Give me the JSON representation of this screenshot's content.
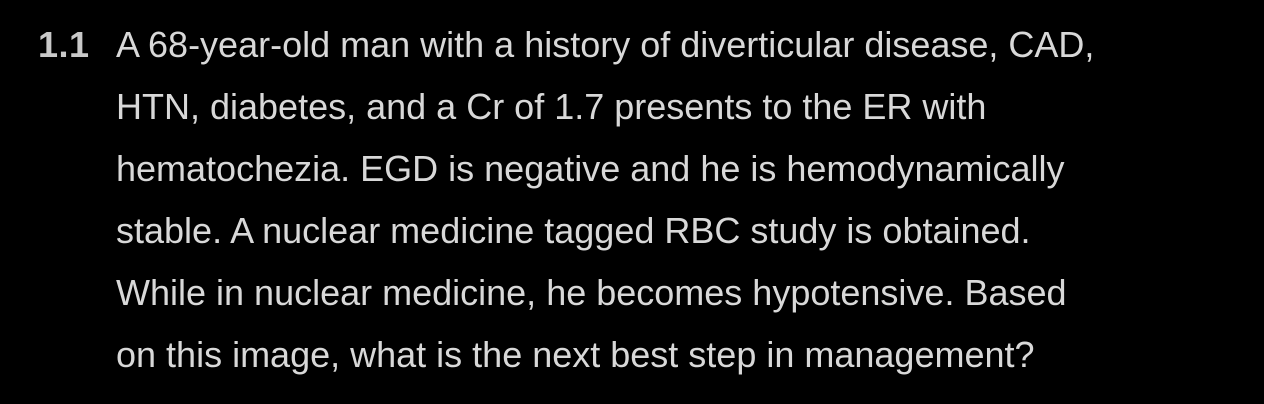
{
  "question": {
    "number": "1.1",
    "lines": [
      "A 68-year-old man with a history of diverticular disease, CAD,",
      "HTN, diabetes, and a Cr of 1.7 presents to the ER with",
      "hematochezia. EGD is negative and he is hemodynamically",
      "stable. A nuclear medicine tagged RBC study is obtained.",
      "While in nuclear medicine, he becomes hypotensive. Based",
      "on this image, what is the next best step in management?"
    ]
  },
  "colors": {
    "background": "#000000",
    "number": "#c9c9c9",
    "text": "#d8d8d8"
  }
}
